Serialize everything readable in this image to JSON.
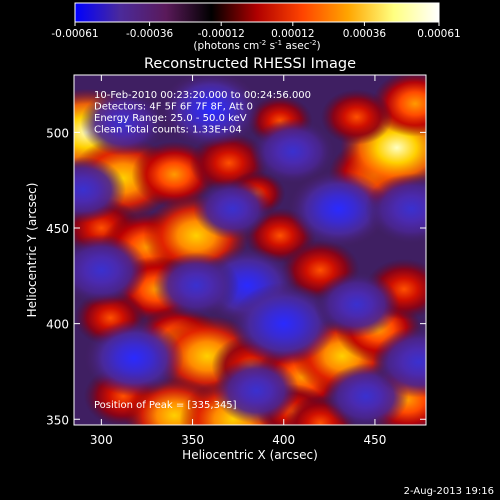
{
  "chart_data": {
    "type": "heatmap",
    "title": "Reconstructed RHESSI Image",
    "xlabel": "Heliocentric X (arcsec)",
    "ylabel": "Heliocentric Y (arcsec)",
    "xlim": [
      285,
      478
    ],
    "ylim": [
      347,
      530
    ],
    "xticks": [
      300,
      350,
      400,
      450
    ],
    "yticks": [
      350,
      400,
      450,
      500
    ],
    "colorbar": {
      "range": [
        -0.00061,
        0.00061
      ],
      "tick_values": [
        -0.00061,
        -0.00036,
        -0.00012,
        0.00012,
        0.00036,
        0.00061
      ],
      "tick_labels": [
        "-0.00061",
        "-0.00036",
        "-0.00012",
        "0.00012",
        "0.00036",
        "0.00061"
      ],
      "units_main": "(photons cm",
      "units_exp1": "-2",
      "units_mid": " s",
      "units_exp2": "-1",
      "units_tail": " asec",
      "units_exp3": "-2",
      "units_end": ")",
      "colors": [
        "#0000ff",
        "#4b2a9a",
        "#5a1a5a",
        "#000000",
        "#b00000",
        "#ff4400",
        "#ffa500",
        "#ffff80",
        "#ffffff"
      ]
    },
    "info_lines": [
      "10-Feb-2010 00:23:20.000 to 00:24:56.000",
      "Detectors: 4F 5F 6F 7F 8F, Att 0",
      "Energy Range: 25.0 - 50.0 keV",
      "Clean    Total counts: 1.33E+04"
    ],
    "peak_label": "Position of Peak = [335,345]",
    "date_stamp": "2-Aug-2013 19:16",
    "blobs": [
      {
        "x": 292,
        "y": 500,
        "v": 0.0006
      },
      {
        "x": 312,
        "y": 476,
        "v": 0.00055
      },
      {
        "x": 340,
        "y": 478,
        "v": 0.0004
      },
      {
        "x": 370,
        "y": 484,
        "v": 0.00035
      },
      {
        "x": 385,
        "y": 468,
        "v": 0.0002
      },
      {
        "x": 300,
        "y": 450,
        "v": 0.00035
      },
      {
        "x": 325,
        "y": 440,
        "v": 0.00045
      },
      {
        "x": 352,
        "y": 446,
        "v": 0.00055
      },
      {
        "x": 330,
        "y": 418,
        "v": 0.0004
      },
      {
        "x": 398,
        "y": 446,
        "v": 0.0003
      },
      {
        "x": 420,
        "y": 428,
        "v": 0.00035
      },
      {
        "x": 450,
        "y": 478,
        "v": 0.00045
      },
      {
        "x": 462,
        "y": 492,
        "v": 0.0006
      },
      {
        "x": 472,
        "y": 515,
        "v": 0.0004
      },
      {
        "x": 440,
        "y": 508,
        "v": 0.0003
      },
      {
        "x": 398,
        "y": 506,
        "v": 0.00025
      },
      {
        "x": 305,
        "y": 403,
        "v": 0.0003
      },
      {
        "x": 342,
        "y": 392,
        "v": 0.0004
      },
      {
        "x": 358,
        "y": 383,
        "v": 0.00055
      },
      {
        "x": 382,
        "y": 378,
        "v": 0.00035
      },
      {
        "x": 410,
        "y": 372,
        "v": 0.00045
      },
      {
        "x": 432,
        "y": 383,
        "v": 0.0005
      },
      {
        "x": 452,
        "y": 397,
        "v": 0.0004
      },
      {
        "x": 466,
        "y": 418,
        "v": 0.00035
      },
      {
        "x": 312,
        "y": 362,
        "v": 0.00035
      },
      {
        "x": 340,
        "y": 352,
        "v": 0.0005
      },
      {
        "x": 372,
        "y": 350,
        "v": 0.00055
      },
      {
        "x": 405,
        "y": 354,
        "v": 0.0003
      },
      {
        "x": 468,
        "y": 360,
        "v": 0.00045
      },
      {
        "x": 420,
        "y": 348,
        "v": 0.0003
      },
      {
        "x": 312,
        "y": 505,
        "v": -0.0004
      },
      {
        "x": 360,
        "y": 512,
        "v": -0.0005
      },
      {
        "x": 405,
        "y": 490,
        "v": -0.0004
      },
      {
        "x": 430,
        "y": 460,
        "v": -0.0005
      },
      {
        "x": 470,
        "y": 460,
        "v": -0.00045
      },
      {
        "x": 290,
        "y": 470,
        "v": -0.0004
      },
      {
        "x": 372,
        "y": 460,
        "v": -0.00035
      },
      {
        "x": 380,
        "y": 420,
        "v": -0.0005
      },
      {
        "x": 300,
        "y": 428,
        "v": -0.00045
      },
      {
        "x": 352,
        "y": 420,
        "v": -0.0004
      },
      {
        "x": 400,
        "y": 400,
        "v": -0.00055
      },
      {
        "x": 440,
        "y": 410,
        "v": -0.0004
      },
      {
        "x": 318,
        "y": 382,
        "v": -0.0005
      },
      {
        "x": 385,
        "y": 365,
        "v": -0.0004
      },
      {
        "x": 445,
        "y": 362,
        "v": -0.0004
      },
      {
        "x": 474,
        "y": 380,
        "v": -0.00045
      }
    ]
  }
}
